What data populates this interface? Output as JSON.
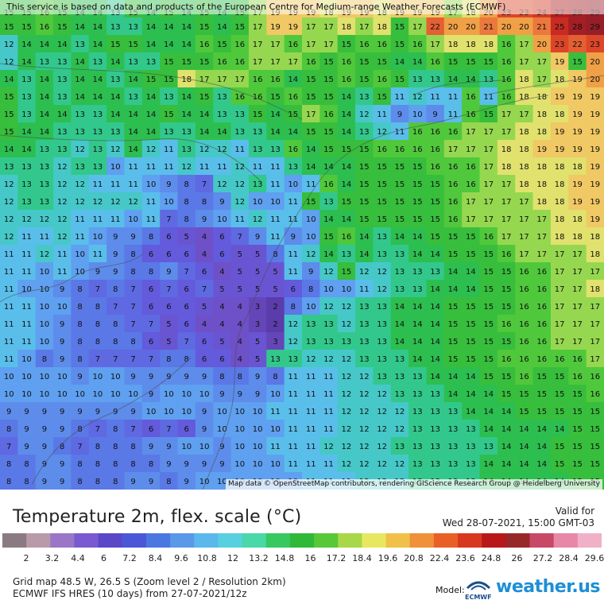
{
  "map": {
    "banner_text": "This service is based on data and products of the European Centre for Medium-range Weather Forecasts (ECMWF)",
    "attribution": "Map data © OpenStreetMap contributors, rendering GIScience Research Group @ Heidelberg University",
    "grid": [
      [
        15,
        15,
        16,
        15,
        14,
        14,
        13,
        15,
        14,
        15,
        14,
        15,
        14,
        15,
        17,
        19,
        19,
        19,
        18,
        19,
        19,
        18,
        19,
        19,
        19,
        17,
        18,
        20,
        23,
        23,
        24,
        27,
        28,
        29
      ],
      [
        15,
        15,
        16,
        15,
        14,
        14,
        13,
        13,
        14,
        14,
        14,
        15,
        14,
        15,
        17,
        19,
        19,
        17,
        17,
        18,
        17,
        18,
        15,
        17,
        22,
        20,
        20,
        21,
        20,
        20,
        21,
        25,
        28,
        29
      ],
      [
        12,
        14,
        14,
        14,
        13,
        14,
        15,
        15,
        14,
        14,
        14,
        16,
        15,
        16,
        17,
        17,
        16,
        17,
        17,
        15,
        16,
        16,
        15,
        16,
        17,
        18,
        18,
        18,
        16,
        17,
        20,
        23,
        22,
        23
      ],
      [
        12,
        14,
        13,
        13,
        14,
        13,
        14,
        13,
        13,
        15,
        15,
        15,
        16,
        16,
        17,
        17,
        17,
        16,
        15,
        16,
        15,
        15,
        14,
        14,
        16,
        15,
        15,
        15,
        16,
        17,
        17,
        19,
        15,
        20
      ],
      [
        14,
        13,
        14,
        13,
        14,
        14,
        13,
        14,
        15,
        15,
        18,
        17,
        17,
        17,
        16,
        16,
        14,
        15,
        15,
        16,
        15,
        16,
        15,
        13,
        13,
        14,
        14,
        13,
        16,
        18,
        17,
        18,
        19,
        20
      ],
      [
        15,
        13,
        14,
        13,
        14,
        14,
        14,
        13,
        14,
        13,
        14,
        15,
        13,
        16,
        16,
        15,
        16,
        15,
        15,
        14,
        13,
        15,
        11,
        12,
        11,
        11,
        16,
        11,
        16,
        18,
        18,
        19,
        19,
        19
      ],
      [
        15,
        13,
        14,
        14,
        13,
        13,
        14,
        14,
        14,
        15,
        14,
        14,
        13,
        13,
        15,
        14,
        15,
        17,
        16,
        14,
        12,
        11,
        9,
        10,
        9,
        11,
        16,
        15,
        17,
        17,
        18,
        18,
        19,
        19
      ],
      [
        15,
        14,
        14,
        13,
        13,
        13,
        13,
        14,
        14,
        13,
        13,
        14,
        14,
        13,
        13,
        14,
        14,
        15,
        15,
        14,
        13,
        12,
        11,
        16,
        16,
        16,
        17,
        17,
        17,
        18,
        18,
        19,
        19,
        19
      ],
      [
        14,
        14,
        13,
        13,
        12,
        13,
        12,
        14,
        12,
        11,
        13,
        12,
        12,
        11,
        13,
        13,
        16,
        14,
        15,
        15,
        15,
        16,
        16,
        16,
        16,
        17,
        17,
        17,
        18,
        18,
        19,
        19,
        19,
        19
      ],
      [
        13,
        13,
        13,
        12,
        13,
        13,
        10,
        11,
        11,
        11,
        12,
        11,
        11,
        12,
        11,
        11,
        13,
        14,
        14,
        14,
        15,
        15,
        15,
        15,
        16,
        16,
        16,
        17,
        18,
        18,
        18,
        18,
        18,
        19
      ],
      [
        12,
        13,
        13,
        12,
        12,
        11,
        11,
        11,
        10,
        9,
        8,
        7,
        12,
        12,
        13,
        11,
        10,
        11,
        16,
        14,
        15,
        15,
        15,
        15,
        15,
        16,
        16,
        17,
        17,
        18,
        18,
        18,
        19,
        19
      ],
      [
        12,
        13,
        13,
        12,
        12,
        12,
        12,
        12,
        11,
        10,
        8,
        8,
        9,
        12,
        10,
        10,
        11,
        15,
        13,
        15,
        15,
        15,
        15,
        15,
        15,
        16,
        17,
        17,
        17,
        17,
        18,
        18,
        19,
        19
      ],
      [
        12,
        12,
        12,
        12,
        11,
        11,
        11,
        10,
        11,
        7,
        8,
        9,
        10,
        11,
        12,
        11,
        11,
        10,
        14,
        14,
        15,
        15,
        15,
        15,
        15,
        16,
        17,
        17,
        17,
        17,
        17,
        18,
        18,
        19
      ],
      [
        12,
        11,
        11,
        12,
        11,
        10,
        9,
        9,
        8,
        6,
        5,
        4,
        6,
        7,
        9,
        11,
        9,
        10,
        15,
        16,
        14,
        13,
        14,
        14,
        15,
        15,
        15,
        16,
        17,
        17,
        17,
        18,
        18,
        18
      ],
      [
        11,
        11,
        12,
        11,
        10,
        11,
        9,
        8,
        6,
        6,
        6,
        4,
        6,
        5,
        5,
        8,
        11,
        12,
        14,
        13,
        14,
        13,
        13,
        14,
        14,
        15,
        15,
        15,
        16,
        17,
        17,
        17,
        17,
        18
      ],
      [
        11,
        11,
        10,
        11,
        10,
        9,
        9,
        8,
        8,
        9,
        7,
        6,
        4,
        5,
        5,
        5,
        11,
        9,
        12,
        15,
        12,
        12,
        13,
        13,
        13,
        14,
        14,
        15,
        15,
        16,
        16,
        17,
        17,
        17
      ],
      [
        11,
        10,
        10,
        9,
        8,
        7,
        8,
        7,
        6,
        7,
        6,
        7,
        5,
        5,
        5,
        5,
        6,
        8,
        10,
        10,
        11,
        12,
        13,
        13,
        14,
        14,
        14,
        15,
        15,
        16,
        16,
        17,
        17,
        18
      ],
      [
        11,
        11,
        10,
        10,
        8,
        8,
        7,
        7,
        6,
        6,
        6,
        5,
        4,
        4,
        3,
        2,
        8,
        10,
        12,
        12,
        13,
        13,
        14,
        14,
        14,
        15,
        15,
        15,
        15,
        16,
        16,
        17,
        17,
        17
      ],
      [
        11,
        11,
        10,
        9,
        8,
        8,
        8,
        7,
        7,
        5,
        6,
        4,
        4,
        4,
        3,
        2,
        12,
        13,
        13,
        12,
        13,
        13,
        14,
        14,
        14,
        15,
        15,
        15,
        16,
        16,
        16,
        17,
        17,
        17
      ],
      [
        11,
        11,
        10,
        9,
        8,
        8,
        8,
        8,
        6,
        5,
        7,
        6,
        5,
        4,
        5,
        3,
        12,
        13,
        13,
        13,
        13,
        13,
        14,
        14,
        14,
        15,
        15,
        15,
        15,
        16,
        16,
        17,
        17,
        17
      ],
      [
        11,
        10,
        8,
        9,
        8,
        7,
        7,
        7,
        7,
        8,
        8,
        6,
        6,
        4,
        5,
        13,
        13,
        12,
        12,
        12,
        13,
        13,
        13,
        14,
        14,
        15,
        15,
        15,
        16,
        16,
        16,
        16,
        16,
        17
      ],
      [
        10,
        10,
        10,
        10,
        9,
        10,
        10,
        9,
        9,
        9,
        9,
        9,
        8,
        8,
        9,
        8,
        11,
        11,
        11,
        12,
        12,
        13,
        13,
        13,
        14,
        14,
        14,
        15,
        15,
        16,
        15,
        15,
        16,
        16
      ],
      [
        10,
        10,
        10,
        10,
        10,
        10,
        10,
        10,
        9,
        10,
        10,
        10,
        9,
        9,
        9,
        10,
        11,
        11,
        11,
        12,
        12,
        12,
        13,
        13,
        13,
        14,
        14,
        14,
        15,
        15,
        15,
        15,
        15,
        16
      ],
      [
        9,
        9,
        9,
        9,
        9,
        9,
        9,
        9,
        10,
        10,
        10,
        9,
        10,
        10,
        10,
        11,
        11,
        11,
        11,
        12,
        12,
        12,
        12,
        13,
        13,
        13,
        14,
        14,
        14,
        15,
        15,
        15,
        15,
        15
      ],
      [
        8,
        9,
        9,
        9,
        8,
        7,
        8,
        7,
        6,
        7,
        6,
        9,
        10,
        10,
        10,
        10,
        11,
        11,
        11,
        12,
        12,
        12,
        12,
        13,
        13,
        13,
        13,
        14,
        14,
        14,
        14,
        14,
        15,
        15
      ],
      [
        7,
        9,
        9,
        8,
        7,
        8,
        8,
        8,
        9,
        9,
        10,
        10,
        9,
        10,
        10,
        11,
        11,
        11,
        12,
        12,
        12,
        12,
        13,
        13,
        13,
        13,
        13,
        13,
        14,
        14,
        14,
        15,
        15,
        15
      ],
      [
        8,
        8,
        9,
        9,
        8,
        8,
        8,
        8,
        8,
        9,
        9,
        9,
        9,
        10,
        10,
        10,
        11,
        11,
        11,
        12,
        12,
        12,
        12,
        13,
        13,
        13,
        13,
        14,
        14,
        14,
        14,
        15,
        15,
        15
      ],
      [
        8,
        8,
        9,
        9,
        8,
        8,
        8,
        9,
        9,
        8,
        9,
        10,
        10,
        10,
        10,
        10,
        10,
        11,
        11,
        11,
        12,
        12,
        12,
        13,
        13,
        13,
        13,
        14,
        14,
        14,
        14,
        14,
        15,
        15
      ]
    ]
  },
  "legend": {
    "title": "Temperature 2m, flex. scale (°C)",
    "valid_label": "Valid for",
    "valid_date": "Wed 28-07-2021, 15:00 GMT-03",
    "ticks": [
      "2",
      "3.2",
      "4.4",
      "6",
      "7.2",
      "8.4",
      "9.6",
      "10.8",
      "12",
      "13.2",
      "14.8",
      "16",
      "17.2",
      "18.4",
      "19.6",
      "20.8",
      "22.4",
      "23.6",
      "24.8",
      "26",
      "27.2",
      "28.4",
      "29.6"
    ],
    "info_line1": "Grid map 48.5 W, 26.5 S (Zoom level 2 / Resolution 2km)",
    "info_line2": "ECMWF IFS HRES (10 days) from 27-07-2021/12z",
    "model_label": "Model:",
    "model_name": "ECMWF",
    "brand": "weather.us"
  },
  "colors": {
    "scale": [
      "#8c7a82",
      "#b99aa8",
      "#9a76c8",
      "#7a5ad0",
      "#5a48c8",
      "#4a58d8",
      "#4a78e0",
      "#5a98e8",
      "#5ab8ec",
      "#58d0e0",
      "#4ad8a8",
      "#38c860",
      "#30b838",
      "#58c838",
      "#a8d848",
      "#e8e860",
      "#f0c048",
      "#f09038",
      "#e86028",
      "#d83820",
      "#b81818",
      "#982828",
      "#c84868",
      "#e888a8",
      "#f0b0c8"
    ]
  }
}
